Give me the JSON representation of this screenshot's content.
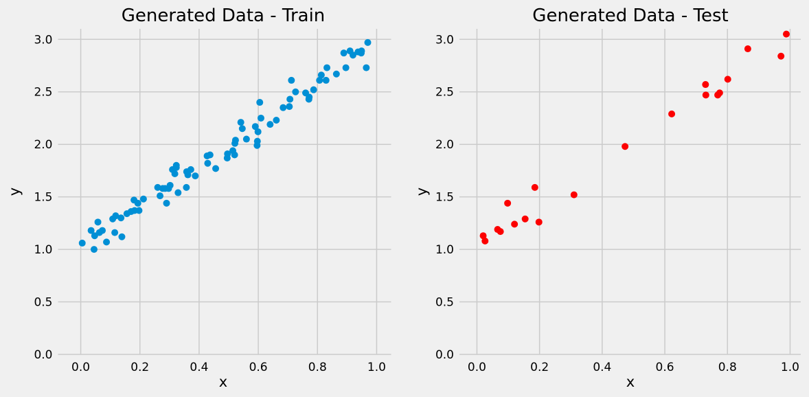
{
  "chart_data": [
    {
      "type": "scatter",
      "title": "Generated Data - Train",
      "xlabel": "x",
      "ylabel": "y",
      "xlim": [
        -0.0489,
        1.0489
      ],
      "ylim": [
        0.0,
        3.1
      ],
      "xticks": [
        "0.0",
        "0.2",
        "0.4",
        "0.6",
        "0.8",
        "1.0"
      ],
      "yticks": [
        "0.0",
        "0.5",
        "1.0",
        "1.5",
        "2.0",
        "2.5",
        "3.0"
      ],
      "grid": true,
      "legend": "none",
      "series": [
        {
          "color": "#008fd5",
          "x": [
            0.005,
            0.035,
            0.045,
            0.047,
            0.058,
            0.063,
            0.073,
            0.087,
            0.108,
            0.115,
            0.118,
            0.136,
            0.139,
            0.156,
            0.17,
            0.18,
            0.182,
            0.193,
            0.197,
            0.212,
            0.26,
            0.268,
            0.277,
            0.285,
            0.29,
            0.297,
            0.302,
            0.31,
            0.318,
            0.323,
            0.323,
            0.329,
            0.357,
            0.358,
            0.362,
            0.372,
            0.387,
            0.427,
            0.429,
            0.437,
            0.456,
            0.495,
            0.496,
            0.514,
            0.52,
            0.521,
            0.523,
            0.541,
            0.546,
            0.56,
            0.59,
            0.596,
            0.597,
            0.599,
            0.605,
            0.609,
            0.64,
            0.661,
            0.684,
            0.705,
            0.707,
            0.712,
            0.726,
            0.76,
            0.771,
            0.772,
            0.787,
            0.807,
            0.813,
            0.829,
            0.832,
            0.864,
            0.889,
            0.896,
            0.91,
            0.92,
            0.937,
            0.948,
            0.949,
            0.965,
            0.97
          ]
        }
      ]
    },
    {
      "type": "scatter",
      "title": "Generated Data - Test",
      "xlabel": "x",
      "ylabel": "y",
      "xlim": [
        -0.0295,
        1.0341
      ],
      "ylim": [
        0.0,
        3.1
      ],
      "xticks": [
        "0.0",
        "0.2",
        "0.4",
        "0.6",
        "0.8",
        "1.0"
      ],
      "yticks": [
        "0.0",
        "0.5",
        "1.0",
        "1.5",
        "2.0",
        "2.5",
        "3.0"
      ],
      "grid": true,
      "legend": "none",
      "series": [
        {
          "color": "#fc0000",
          "x": [
            0.02,
            0.026,
            0.066,
            0.075,
            0.098,
            0.12,
            0.154,
            0.185,
            0.198,
            0.31,
            0.473,
            0.622,
            0.73,
            0.731,
            0.769,
            0.775,
            0.801,
            0.865,
            0.971,
            0.988
          ],
          "y": [
            1.13,
            1.08,
            1.19,
            1.17,
            1.44,
            1.24,
            1.29,
            1.59,
            1.26,
            1.52,
            1.98,
            2.29,
            2.57,
            2.47,
            2.47,
            2.49,
            2.62,
            2.91,
            2.84,
            3.05
          ]
        }
      ]
    }
  ],
  "train_y": [
    1.06,
    1.18,
    1.0,
    1.13,
    1.26,
    1.16,
    1.18,
    1.07,
    1.29,
    1.16,
    1.32,
    1.3,
    1.12,
    1.34,
    1.36,
    1.47,
    1.37,
    1.44,
    1.37,
    1.48,
    1.59,
    1.51,
    1.58,
    1.58,
    1.44,
    1.58,
    1.61,
    1.76,
    1.72,
    1.78,
    1.8,
    1.54,
    1.59,
    1.74,
    1.71,
    1.76,
    1.7,
    1.89,
    1.82,
    1.9,
    1.77,
    1.87,
    1.91,
    1.94,
    1.9,
    2.01,
    2.04,
    2.21,
    2.15,
    2.05,
    2.17,
    1.99,
    2.03,
    2.12,
    2.4,
    2.25,
    2.19,
    2.23,
    2.35,
    2.36,
    2.43,
    2.61,
    2.5,
    2.49,
    2.43,
    2.45,
    2.52,
    2.61,
    2.66,
    2.61,
    2.73,
    2.67,
    2.87,
    2.73,
    2.89,
    2.85,
    2.88,
    2.87,
    2.89,
    2.73,
    2.97
  ]
}
